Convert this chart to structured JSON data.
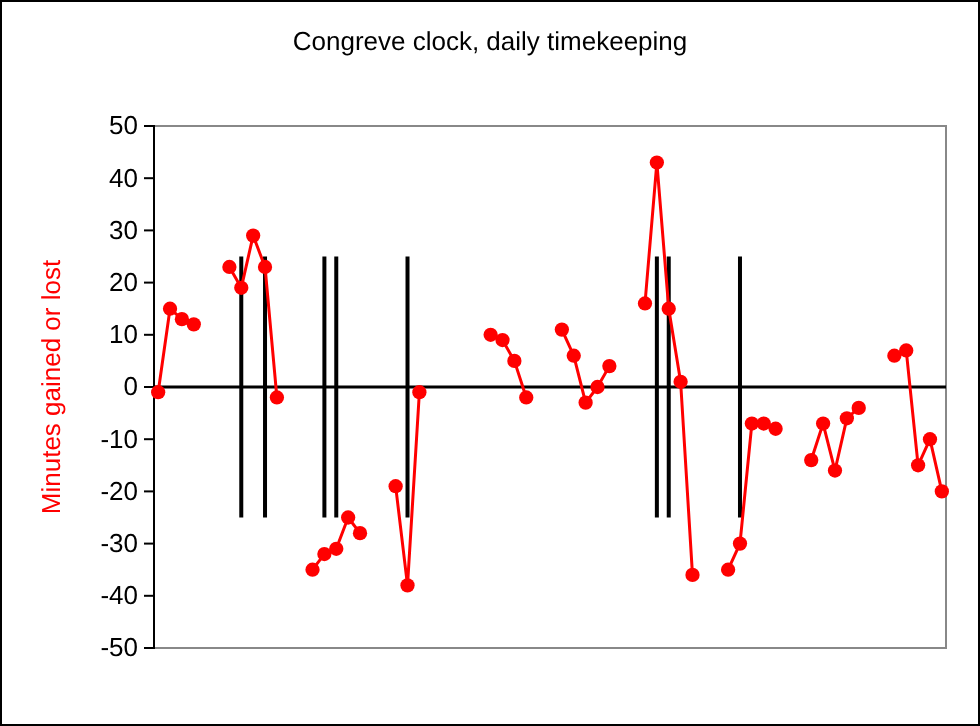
{
  "chart_data": {
    "type": "line",
    "title": "Congreve clock, daily timekeeping",
    "ylabel": "Minutes gained or lost",
    "categories": [
      null,
      null,
      null,
      null,
      null,
      null,
      null,
      null,
      null,
      null,
      null,
      null,
      null,
      null,
      null,
      null,
      null,
      null,
      null,
      null,
      null,
      null,
      null,
      null,
      null,
      null,
      null,
      null,
      null,
      null,
      null,
      null,
      null,
      null,
      null,
      null,
      null,
      null,
      null,
      null,
      null,
      null,
      null,
      null,
      null,
      null,
      null,
      null,
      null,
      null,
      null,
      null,
      null,
      null,
      null,
      null,
      null,
      null,
      null,
      null,
      null,
      null,
      null,
      null,
      null,
      null,
      null
    ],
    "ylim": [
      -50,
      50
    ],
    "yticks": [
      -50,
      -40,
      -30,
      -20,
      -10,
      0,
      10,
      20,
      30,
      40,
      50
    ],
    "tick_labels": "y",
    "marker": "circle",
    "line_style": "solid",
    "series": [
      {
        "color": "#ff0000",
        "values": [
          -1,
          15,
          13,
          12,
          null,
          null,
          23,
          19,
          29,
          23,
          -2,
          null,
          null,
          -35,
          -32,
          -31,
          -25,
          -28,
          null,
          null,
          -19,
          -38,
          -1,
          null,
          null,
          null,
          null,
          null,
          10,
          9,
          5,
          -2,
          null,
          null,
          11,
          6,
          -3,
          0,
          4,
          null,
          null,
          16,
          43,
          15,
          1,
          -36,
          null,
          null,
          -35,
          -30,
          -7,
          -7,
          -8,
          null,
          null,
          -14,
          -7,
          -16,
          -6,
          -4,
          null,
          null,
          6,
          7,
          -15,
          -10,
          -20
        ]
      },
      {
        "type": "bar",
        "color": "#000000",
        "base": [
          null,
          null,
          null,
          null,
          null,
          null,
          null,
          -25,
          null,
          -25,
          null,
          null,
          null,
          null,
          -25,
          -25,
          null,
          null,
          null,
          null,
          null,
          -25,
          null,
          null,
          null,
          null,
          null,
          null,
          null,
          null,
          null,
          null,
          null,
          null,
          null,
          null,
          null,
          null,
          null,
          null,
          null,
          null,
          -25,
          -25,
          null,
          null,
          null,
          null,
          null,
          -25,
          null,
          null,
          null,
          null,
          null,
          null,
          null,
          null,
          null,
          null,
          null,
          null,
          null,
          null,
          null,
          null,
          null
        ],
        "values": [
          null,
          null,
          null,
          null,
          null,
          null,
          null,
          50,
          null,
          50,
          null,
          null,
          null,
          null,
          50,
          50,
          null,
          null,
          null,
          null,
          null,
          50,
          null,
          null,
          null,
          null,
          null,
          null,
          null,
          null,
          null,
          null,
          null,
          null,
          null,
          null,
          null,
          null,
          null,
          null,
          null,
          null,
          50,
          50,
          null,
          null,
          null,
          null,
          null,
          50,
          null,
          null,
          null,
          null,
          null,
          null,
          null,
          null,
          null,
          null,
          null,
          null,
          null,
          null,
          null,
          null,
          null
        ]
      }
    ]
  }
}
